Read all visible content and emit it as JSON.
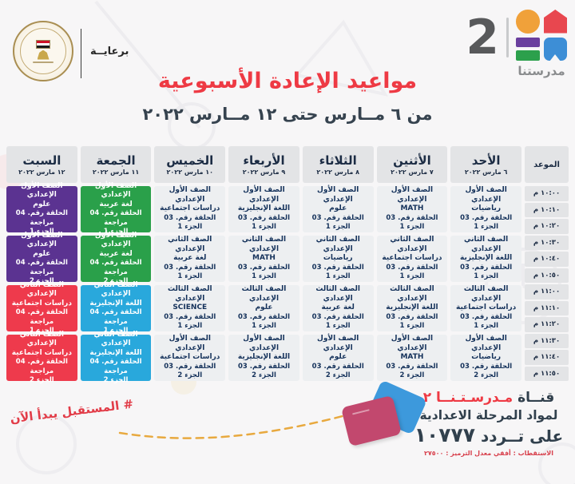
{
  "header": {
    "sponsor_label": "برعايــة",
    "channel_number": "2",
    "channel_name": "مدرستنا",
    "title": "مواعيد الإعادة الأسبوعية",
    "subtitle": "من ٦ مــارس حتى ١٢ مــارس ٢٠٢٢"
  },
  "table": {
    "time_header": "الموعد",
    "times": [
      "١٠:٠٠ م",
      "١٠:١٠ م",
      "١٠:٢٠ م",
      "١٠:٣٠ م",
      "١٠:٤٠ م",
      "١٠:٥٠ م",
      "١١:٠٠ م",
      "١١:١٠ م",
      "١١:٢٠ م",
      "١١:٣٠ م",
      "١١:٤٠ م",
      "١١:٥٠ م"
    ],
    "days": [
      {
        "name": "الأحد",
        "date": "٦ مارس ٢٠٢٢",
        "cells": [
          {
            "grade": "الصف الأول الإعدادي",
            "subject": "رياضيات",
            "episode": "الحلقة رقم. 03",
            "part": "الجزء 1",
            "bg": "plain"
          },
          {
            "grade": "الصف الثاني الإعدادي",
            "subject": "اللغة الإنجليزية",
            "episode": "الحلقة رقم. 03",
            "part": "الجزء 1",
            "bg": "plain"
          },
          {
            "grade": "الصف الثالث الإعدادي",
            "subject": "دراسات اجتماعية",
            "episode": "الحلقة رقم. 03",
            "part": "الجزء 1",
            "bg": "plain"
          },
          {
            "grade": "الصف الأول الإعدادي",
            "subject": "رياضيات",
            "episode": "الحلقة رقم. 03",
            "part": "الجزء 2",
            "bg": "plain"
          }
        ]
      },
      {
        "name": "الأثنين",
        "date": "٧ مارس ٢٠٢٢",
        "cells": [
          {
            "grade": "الصف الأول الإعدادي",
            "subject": "MATH",
            "episode": "الحلقة رقم. 03",
            "part": "الجزء 1",
            "bg": "plain"
          },
          {
            "grade": "الصف الثاني الإعدادي",
            "subject": "دراسات اجتماعية",
            "episode": "الحلقة رقم. 03",
            "part": "الجزء 1",
            "bg": "plain"
          },
          {
            "grade": "الصف الثالث الإعدادي",
            "subject": "اللغة الإنجليزية",
            "episode": "الحلقة رقم. 03",
            "part": "الجزء 1",
            "bg": "plain"
          },
          {
            "grade": "الصف الأول الإعدادي",
            "subject": "MATH",
            "episode": "الحلقة رقم. 03",
            "part": "الجزء 2",
            "bg": "plain"
          }
        ]
      },
      {
        "name": "الثلاثاء",
        "date": "٨ مارس ٢٠٢٢",
        "cells": [
          {
            "grade": "الصف الأول الإعدادي",
            "subject": "علوم",
            "episode": "الحلقة رقم. 03",
            "part": "الجزء 1",
            "bg": "plain"
          },
          {
            "grade": "الصف الثاني الإعدادي",
            "subject": "رياضيات",
            "episode": "الحلقة رقم. 03",
            "part": "الجزء 1",
            "bg": "plain"
          },
          {
            "grade": "الصف الثالث الإعدادي",
            "subject": "لغة عربية",
            "episode": "الحلقة رقم. 03",
            "part": "الجزء 1",
            "bg": "plain"
          },
          {
            "grade": "الصف الأول الإعدادي",
            "subject": "علوم",
            "episode": "الحلقة رقم. 03",
            "part": "الجزء 2",
            "bg": "plain"
          }
        ]
      },
      {
        "name": "الأربعاء",
        "date": "٩ مارس ٢٠٢٢",
        "cells": [
          {
            "grade": "الصف الأول الإعدادي",
            "subject": "اللغة الإنجليزية",
            "episode": "الحلقة رقم. 03",
            "part": "الجزء 1",
            "bg": "plain"
          },
          {
            "grade": "الصف الثاني الإعدادي",
            "subject": "MATH",
            "episode": "الحلقة رقم. 03",
            "part": "الجزء 1",
            "bg": "plain"
          },
          {
            "grade": "الصف الثالث الإعدادي",
            "subject": "علوم",
            "episode": "الحلقة رقم. 03",
            "part": "الجزء 1",
            "bg": "plain"
          },
          {
            "grade": "الصف الأول الإعدادي",
            "subject": "اللغة الإنجليزية",
            "episode": "الحلقة رقم. 03",
            "part": "الجزء 2",
            "bg": "plain"
          }
        ]
      },
      {
        "name": "الخميس",
        "date": "١٠ مارس ٢٠٢٢",
        "cells": [
          {
            "grade": "الصف الأول الإعدادي",
            "subject": "دراسات اجتماعية",
            "episode": "الحلقة رقم. 03",
            "part": "الجزء 1",
            "bg": "plain"
          },
          {
            "grade": "الصف الثاني الإعدادي",
            "subject": "لغة عربية",
            "episode": "الحلقة رقم. 03",
            "part": "الجزء 1",
            "bg": "plain"
          },
          {
            "grade": "الصف الثالث الإعدادي",
            "subject": "SCIENCE",
            "episode": "الحلقة رقم. 03",
            "part": "الجزء 1",
            "bg": "plain"
          },
          {
            "grade": "الصف الأول الإعدادي",
            "subject": "دراسات اجتماعية",
            "episode": "الحلقة رقم. 03",
            "part": "الجزء 2",
            "bg": "plain"
          }
        ]
      },
      {
        "name": "الجمعة",
        "date": "١١ مارس ٢٠٢٢",
        "cells": [
          {
            "grade": "الصف الأول الإعدادي",
            "subject": "لغة عربية",
            "episode": "الحلقة رقم. 04 مراجعة",
            "part": "الجزء 1",
            "bg": "green"
          },
          {
            "grade": "الصف الأول الإعدادي",
            "subject": "لغة عربية",
            "episode": "الحلقة رقم. 04 مراجعة",
            "part": "الجزء 2",
            "bg": "green"
          },
          {
            "grade": "الصف الثاني الإعدادي",
            "subject": "اللغة الإنجليزية",
            "episode": "الحلقة رقم. 04 مراجعة",
            "part": "الجزء 1",
            "bg": "blue"
          },
          {
            "grade": "الصف الثاني الإعدادي",
            "subject": "اللغة الإنجليزية",
            "episode": "الحلقة رقم. 04 مراجعة",
            "part": "الجزء 2",
            "bg": "blue"
          }
        ]
      },
      {
        "name": "السبت",
        "date": "١٢ مارس ٢٠٢٢",
        "cells": [
          {
            "grade": "الصف الأول الإعدادي",
            "subject": "علوم",
            "episode": "الحلقة رقم. 04 مراجعة",
            "part": "الجزء 1",
            "bg": "purple"
          },
          {
            "grade": "الصف الأول الإعدادي",
            "subject": "علوم",
            "episode": "الحلقة رقم. 04 مراجعة",
            "part": "الجزء 2",
            "bg": "purple"
          },
          {
            "grade": "الصف الثاني الإعدادي",
            "subject": "دراسات اجتماعية",
            "episode": "الحلقة رقم. 04 مراجعة",
            "part": "الجزء 1",
            "bg": "red"
          },
          {
            "grade": "الصف الثاني الإعدادي",
            "subject": "دراسات اجتماعية",
            "episode": "الحلقة رقم. 04 مراجعة",
            "part": "الجزء 2",
            "bg": "red"
          }
        ]
      }
    ]
  },
  "footer": {
    "hashtag": "# المستقبل يبدأ الآن",
    "channel_word": "قنــاة",
    "channel_name": "مـدرسـتـنــا ٢",
    "line2": "لمواد المرحلة الاعدادية",
    "freq_label": "على تــردد",
    "frequency": "١٠٧٧٧",
    "tech_line": "الاستقطاب : أفقي معدل الترميز : ٢٧٥٠٠"
  },
  "colors": {
    "accent_red": "#ee3a44",
    "navy_text": "#15325b",
    "cell_green": "#2aa04a",
    "cell_blue": "#29a8dc",
    "cell_purple": "#5b3391",
    "cell_red": "#ee3a4c",
    "dash_orange": "#e8a93f"
  }
}
